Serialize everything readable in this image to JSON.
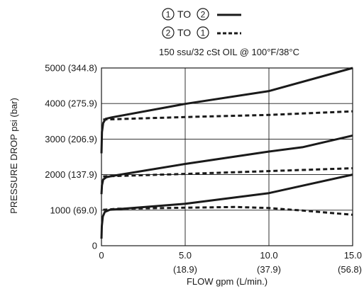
{
  "chart_data": {
    "type": "line",
    "subtitle": "150 ssu/32 cSt OIL @ 100°F/38°C",
    "xlabel": "FLOW gpm (L/min.)",
    "ylabel": "PRESSURE DROP psi (bar)",
    "xlim": [
      0,
      15
    ],
    "ylim": [
      0,
      5000
    ],
    "grid": true,
    "x_ticks": [
      {
        "value": 0,
        "label": "0",
        "sublabel": ""
      },
      {
        "value": 5,
        "label": "5.0",
        "sublabel": "(18.9)"
      },
      {
        "value": 10,
        "label": "10.0",
        "sublabel": "(37.9)"
      },
      {
        "value": 15,
        "label": "15.0",
        "sublabel": "(56.8)"
      }
    ],
    "y_ticks": [
      {
        "value": 0,
        "label": "0"
      },
      {
        "value": 1000,
        "label": "1000 (69.0)"
      },
      {
        "value": 2000,
        "label": "2000 (137.9)"
      },
      {
        "value": 3000,
        "label": "3000 (206.9)"
      },
      {
        "value": 4000,
        "label": "4000 (275.9)"
      },
      {
        "value": 5000,
        "label": "5000 (344.8)"
      }
    ],
    "legend": {
      "placement": "top-center",
      "entries": [
        {
          "from": "1",
          "to_word": "TO",
          "to": "2",
          "style": "solid"
        },
        {
          "from": "2",
          "to_word": "TO",
          "to": "1",
          "style": "dashed"
        }
      ]
    },
    "series": [
      {
        "style": "solid",
        "points": [
          [
            0,
            200
          ],
          [
            0.02,
            550
          ],
          [
            0.08,
            820
          ],
          [
            0.2,
            950
          ],
          [
            0.5,
            1010
          ],
          [
            5,
            1180
          ],
          [
            10,
            1480
          ],
          [
            15,
            2000
          ]
        ]
      },
      {
        "style": "dashed",
        "points": [
          [
            0.1,
            1010
          ],
          [
            1,
            1040
          ],
          [
            5,
            1070
          ],
          [
            8,
            1090
          ],
          [
            10,
            1060
          ],
          [
            12,
            990
          ],
          [
            15,
            870
          ]
        ]
      },
      {
        "style": "solid",
        "points": [
          [
            0,
            1450
          ],
          [
            0.03,
            1700
          ],
          [
            0.1,
            1860
          ],
          [
            0.3,
            1930
          ],
          [
            0.6,
            1960
          ],
          [
            5,
            2300
          ],
          [
            10,
            2650
          ],
          [
            12,
            2770
          ],
          [
            15,
            3100
          ]
        ]
      },
      {
        "style": "dashed",
        "points": [
          [
            0.1,
            1950
          ],
          [
            5,
            2020
          ],
          [
            10,
            2100
          ],
          [
            15,
            2180
          ]
        ]
      },
      {
        "style": "solid",
        "points": [
          [
            0,
            2600
          ],
          [
            0.03,
            3200
          ],
          [
            0.1,
            3450
          ],
          [
            0.25,
            3570
          ],
          [
            0.6,
            3610
          ],
          [
            5,
            3990
          ],
          [
            10,
            4350
          ],
          [
            15,
            5000
          ]
        ]
      },
      {
        "style": "dashed",
        "points": [
          [
            0.1,
            3550
          ],
          [
            5,
            3620
          ],
          [
            10,
            3680
          ],
          [
            15,
            3780
          ]
        ]
      }
    ]
  }
}
